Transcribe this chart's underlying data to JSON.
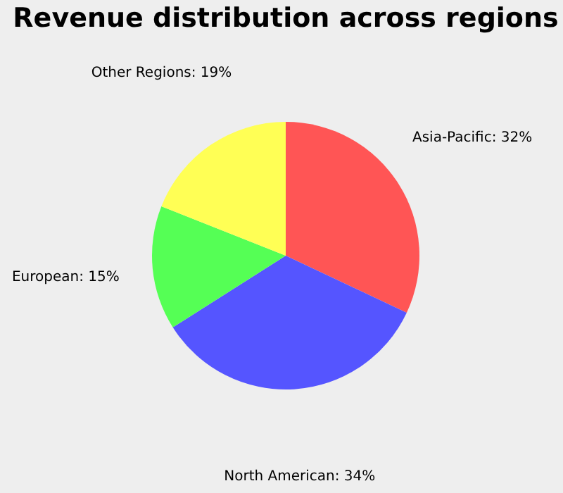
{
  "chart_data": {
    "type": "pie",
    "title": "Revenue distribution across regions",
    "categories": [
      "Asia-Pacific",
      "North American",
      "European",
      "Other Regions"
    ],
    "values": [
      32,
      34,
      15,
      19
    ],
    "value_labels": [
      "32%",
      "34%",
      "15%",
      "19%"
    ],
    "colors": [
      "#ff5555",
      "#5555ff",
      "#55ff55",
      "#ffff55"
    ]
  }
}
